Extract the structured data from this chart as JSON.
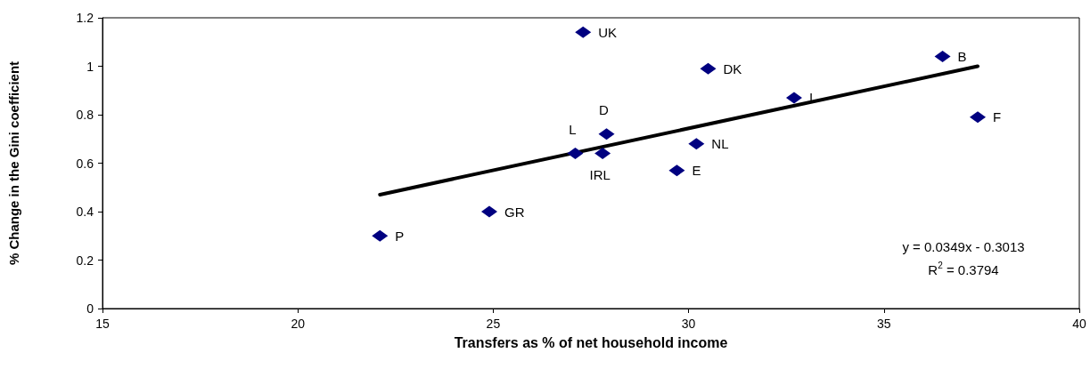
{
  "chart_data": {
    "type": "scatter",
    "xlabel": "Transfers as % of net household income",
    "ylabel": "% Change in the Gini coefficient",
    "xlim": [
      15,
      40
    ],
    "xticks": [
      15,
      20,
      25,
      30,
      35,
      40
    ],
    "ylim": [
      0,
      1.2
    ],
    "yticks": [
      0,
      0.2,
      0.4,
      0.6,
      0.8,
      1,
      1.2
    ],
    "grid": false,
    "series": [
      {
        "marker": "diamond",
        "color": "#000080",
        "x": [
          22.1,
          24.9,
          27.1,
          27.8,
          27.9,
          27.3,
          29.7,
          30.2,
          30.5,
          32.7,
          36.5,
          37.4
        ],
        "values": [
          0.3,
          0.4,
          0.64,
          0.64,
          0.72,
          1.14,
          0.57,
          0.68,
          0.99,
          0.87,
          1.04,
          0.79
        ]
      },
      {
        "type": "line",
        "marker": "none",
        "color": "#000000",
        "x": [
          22.1,
          37.4
        ],
        "values": [
          0.47,
          1.0
        ]
      }
    ],
    "annotations": [
      {
        "text": "P",
        "x": 22.1,
        "y": 0.3
      },
      {
        "text": "GR",
        "x": 24.9,
        "y": 0.4
      },
      {
        "text": "L",
        "x": 27.1,
        "y": 0.64
      },
      {
        "text": "IRL",
        "x": 27.8,
        "y": 0.64
      },
      {
        "text": "D",
        "x": 27.9,
        "y": 0.72
      },
      {
        "text": "UK",
        "x": 27.3,
        "y": 1.14
      },
      {
        "text": "E",
        "x": 29.7,
        "y": 0.57
      },
      {
        "text": "NL",
        "x": 30.2,
        "y": 0.68
      },
      {
        "text": "DK",
        "x": 30.5,
        "y": 0.99
      },
      {
        "text": "I",
        "x": 32.7,
        "y": 0.87
      },
      {
        "text": "B",
        "x": 36.5,
        "y": 1.04
      },
      {
        "text": "F",
        "x": 37.4,
        "y": 0.79
      },
      "y = 0.0349x - 0.3013",
      "R$^{2}$ = 0.3794"
    ]
  }
}
